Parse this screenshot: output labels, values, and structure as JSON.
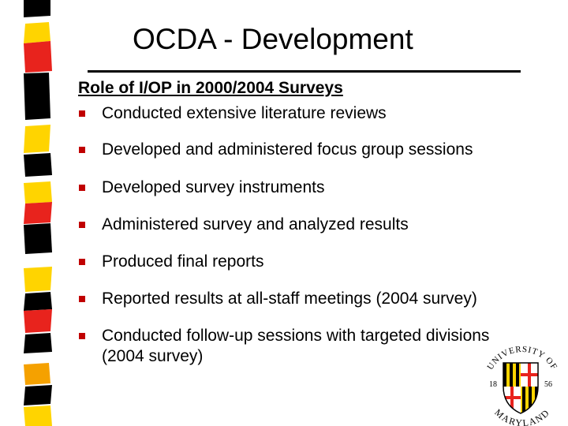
{
  "slide": {
    "title": "OCDA - Development",
    "heading": "Role of I/OP in 2000/2004 Surveys",
    "bullets": [
      {
        "text": "Conducted extensive literature reviews"
      },
      {
        "text": "Developed and administered focus group sessions"
      },
      {
        "text": "Developed survey instruments"
      },
      {
        "text": "Administered survey and analyzed results"
      },
      {
        "text": "Produced final reports"
      },
      {
        "text": "Reported results at all-staff meetings (2004 survey)"
      },
      {
        "text": "Conducted follow-up sessions with targeted divisions",
        "continuation": "(2004 survey)"
      }
    ]
  },
  "logo": {
    "text_top": "UNIVERSITY OF",
    "text_bottom": "MARYLAND",
    "year_left": "18",
    "year_right": "56"
  },
  "colors": {
    "black": "#000000",
    "yellow": "#ffd400",
    "red": "#e8231d",
    "orange": "#f5a100",
    "bullet": "#c00000"
  }
}
